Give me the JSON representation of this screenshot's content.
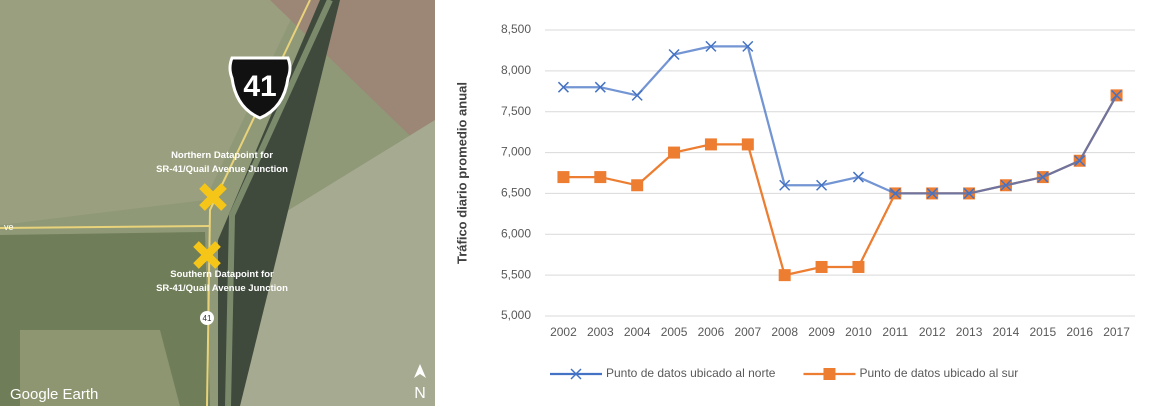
{
  "map": {
    "shield": "41",
    "north_label": [
      "Northern Datapoint for",
      "SR-41/Quail Avenue Junction"
    ],
    "south_label": [
      "Southern Datapoint for",
      "SR-41/Quail Avenue Junction"
    ],
    "road_marker": "41",
    "road_fragment": "ve",
    "brand": "Google Earth",
    "compass": "N"
  },
  "chart_data": {
    "type": "line",
    "y_label": "Tráfico diario promedio anual",
    "categories": [
      "2002",
      "2003",
      "2004",
      "2005",
      "2006",
      "2007",
      "2008",
      "2009",
      "2010",
      "2011",
      "2012",
      "2013",
      "2014",
      "2015",
      "2016",
      "2017"
    ],
    "series": [
      {
        "name": "Punto de datos ubicado al norte",
        "color": "#4472c4",
        "marker": "x",
        "values": [
          7800,
          7800,
          7700,
          8200,
          8300,
          8300,
          6600,
          6600,
          6700,
          6500,
          6500,
          6500,
          6600,
          6700,
          6900,
          7700
        ]
      },
      {
        "name": "Punto de datos ubicado al sur",
        "color": "#ed7d31",
        "marker": "square",
        "values": [
          6700,
          6700,
          6600,
          7000,
          7100,
          7100,
          5500,
          5600,
          5600,
          6500,
          6500,
          6500,
          6600,
          6700,
          6900,
          7700
        ]
      }
    ],
    "ylim": [
      5000,
      8500
    ],
    "yticks": [
      {
        "value": 5000,
        "label": "5,000"
      },
      {
        "value": 5500,
        "label": "5,500"
      },
      {
        "value": 6000,
        "label": "6,000"
      },
      {
        "value": 6500,
        "label": "6,500"
      },
      {
        "value": 7000,
        "label": "7,000"
      },
      {
        "value": 7500,
        "label": "7,500"
      },
      {
        "value": 8000,
        "label": "8,000"
      },
      {
        "value": 8500,
        "label": "8,500"
      }
    ],
    "grid": true,
    "legend": "bottom"
  }
}
